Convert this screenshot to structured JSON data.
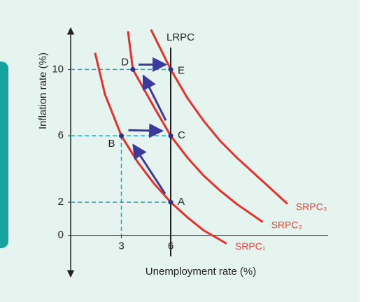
{
  "chart_data": {
    "type": "phillips",
    "x_label": "Unemployment rate (%)",
    "y_label": "Inflation rate (%)",
    "xlim": [
      0,
      16
    ],
    "ylim": [
      -2.5,
      12.5
    ],
    "xticks": [
      3,
      6
    ],
    "yticks": [
      0,
      2,
      6,
      10
    ],
    "lrpc": {
      "name": "LRPC",
      "x": 6
    },
    "series": [
      {
        "name": "SRPC₁",
        "color": "#e8302a",
        "x": [
          1.4,
          2,
          3,
          4,
          5,
          6,
          7,
          8,
          9.4
        ],
        "values": [
          11,
          8.5,
          6,
          4.4,
          3.1,
          2,
          1.1,
          0.3,
          -0.5
        ]
      },
      {
        "name": "SRPC₂",
        "color": "#e8302a",
        "x": [
          3.4,
          3.7,
          5,
          6,
          7,
          8,
          9,
          10,
          11.6
        ],
        "values": [
          12.3,
          10,
          7.7,
          6,
          4.7,
          3.6,
          2.7,
          1.9,
          0.8
        ]
      },
      {
        "name": "SRPC₃",
        "color": "#e8302a",
        "x": [
          4.8,
          6,
          7,
          8,
          9,
          10,
          11,
          13.1
        ],
        "values": [
          12.4,
          10,
          8.3,
          6.9,
          5.7,
          4.7,
          3.8,
          1.9
        ]
      }
    ],
    "points": [
      {
        "label": "A",
        "x": 6,
        "y": 2
      },
      {
        "label": "B",
        "x": 3,
        "y": 6
      },
      {
        "label": "C",
        "x": 6,
        "y": 6
      },
      {
        "label": "D",
        "x": 3.7,
        "y": 10
      },
      {
        "label": "E",
        "x": 6,
        "y": 10
      }
    ],
    "arrow_color": "#3b3b9c",
    "point_color": "#2e2e8c",
    "guide_color": "#1aa3c8"
  }
}
